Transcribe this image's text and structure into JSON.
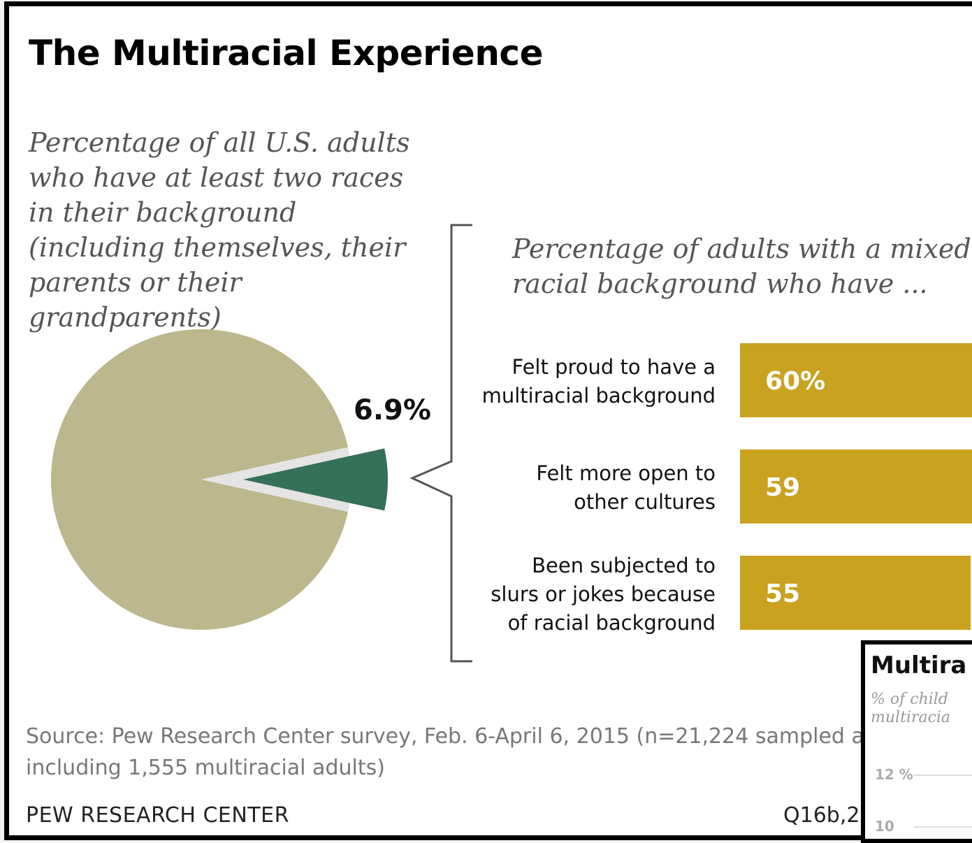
{
  "title": "The Multiracial Experience",
  "subtitle_left": "Percentage of all U.S. adults who have at least two races in their background (including themselves, their parents or their grandparents)",
  "subtitle_right": "Percentage of adults with a mixed racial background who have ...",
  "source": "Source: Pew Research Center survey, Feb. 6-April 6, 2015 (n=21,224 sampled a",
  "source_line2": "including 1,555 multiracial adults)",
  "brand": "PEW RESEARCH CENTER",
  "code": "Q16b,25",
  "colors": {
    "pie_main": "#bcb78c",
    "pie_slice": "#357059",
    "bar": "#c9a21f",
    "bracket": "#555555"
  },
  "inset": {
    "title": "Multira",
    "subtitle_line1": "% of child",
    "subtitle_line2": "multiracia",
    "ticks": [
      "12 %",
      "10"
    ]
  },
  "chart_data": [
    {
      "type": "pie",
      "slices": [
        {
          "value": 6.9,
          "label": "6.9%",
          "exploded": true
        },
        {
          "value": 93.1
        }
      ]
    },
    {
      "type": "bar",
      "orientation": "horizontal",
      "categories": [
        [
          "Felt proud to have a",
          "multiracial background"
        ],
        [
          "Felt more open to",
          "other cultures"
        ],
        [
          "Been subjected to",
          "slurs or jokes because",
          "of racial background"
        ]
      ],
      "values": [
        60,
        59,
        55
      ],
      "data_labels": [
        "60%",
        "59",
        "55"
      ]
    }
  ]
}
